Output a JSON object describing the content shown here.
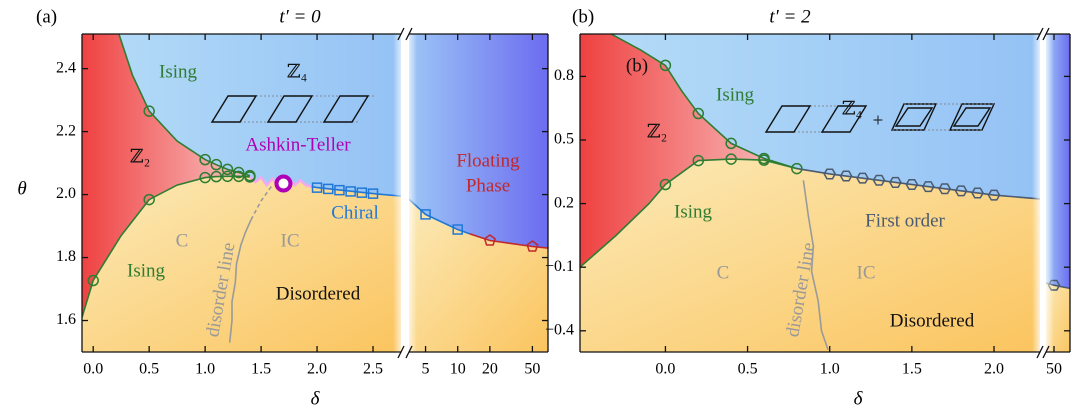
{
  "chart_data": [
    {
      "type": "phase",
      "panel_label": "(a)",
      "title": "t′ = 0",
      "xlabel": "δ",
      "ylabel": "θ",
      "xlim": [
        -0.1,
        2.75
      ],
      "x2lim": [
        3.5,
        70
      ],
      "x2scale": "log",
      "ylim": [
        1.5,
        2.51
      ],
      "xticks": [
        {
          "value": 0,
          "label": "0.0"
        },
        0.5,
        {
          "value": 1,
          "label": "1.0"
        },
        1.5,
        {
          "value": 2,
          "label": "2.0"
        },
        2.5
      ],
      "x2ticks": [
        5,
        10,
        20,
        50
      ],
      "yticks": [
        1.6,
        1.8,
        {
          "value": 2,
          "label": "2.0"
        },
        2.2,
        2.4
      ],
      "lines": [
        {
          "color": "#2e7d32",
          "x": [
            0.23,
            0.35,
            0.5,
            0.75,
            1.0,
            1.1,
            1.2,
            1.3,
            1.4
          ],
          "y": [
            2.51,
            2.38,
            2.265,
            2.17,
            2.111,
            2.095,
            2.08,
            2.07,
            2.06
          ]
        },
        {
          "color": "#2e7d32",
          "x": [
            -0.1,
            0,
            0.25,
            0.5,
            0.75,
            1.0,
            1.1,
            1.2,
            1.3,
            1.4
          ],
          "y": [
            1.61,
            1.727,
            1.87,
            1.984,
            2.03,
            2.054,
            2.057,
            2.058,
            2.058,
            2.056
          ]
        },
        {
          "color": "#f4a8f0",
          "x": [
            1.4,
            1.45,
            1.5,
            1.55,
            1.6,
            1.65,
            1.7,
            1.75,
            1.8,
            1.85,
            1.9,
            1.95
          ],
          "y": [
            2.056,
            2.04,
            2.055,
            2.03,
            2.05,
            2.03,
            2.035,
            2.05,
            2.03,
            2.045,
            2.03,
            2.025
          ]
        },
        {
          "color": "#1f78d8",
          "x": [
            1.95,
            2.0,
            2.5,
            2.75
          ],
          "y": [
            2.025,
            2.022,
            2.003,
            1.995
          ]
        },
        {
          "color": "#1f78d8",
          "axis": "x2",
          "x": [
            3.5,
            5,
            10,
            13
          ],
          "y": [
            1.985,
            1.937,
            1.889,
            1.875
          ]
        },
        {
          "color": "#c0282d",
          "axis": "x2",
          "x": [
            13,
            20,
            50,
            70
          ],
          "y": [
            1.875,
            1.854,
            1.835,
            1.83
          ]
        },
        {
          "color": "#9a9a9a",
          "x": [
            1.22,
            1.24,
            1.24,
            1.27,
            1.28,
            1.32,
            1.36,
            1.41
          ],
          "y": [
            1.53,
            1.6,
            1.66,
            1.72,
            1.78,
            1.84,
            1.88,
            1.92
          ]
        },
        {
          "color": "#9a9a9a",
          "dash": true,
          "x": [
            1.41,
            1.5,
            1.6
          ],
          "y": [
            1.92,
            1.98,
            2.03
          ]
        }
      ],
      "points": [
        {
          "marker": "circle",
          "color": "#2e7d32",
          "x": [
            0.5,
            1.0,
            1.1,
            1.2,
            1.3,
            1.4
          ],
          "y": [
            2.265,
            2.111,
            2.095,
            2.08,
            2.07,
            2.06
          ]
        },
        {
          "marker": "circle",
          "color": "#2e7d32",
          "x": [
            0,
            0.5,
            1.0,
            1.1,
            1.2,
            1.3,
            1.4
          ],
          "y": [
            1.727,
            1.984,
            2.054,
            2.057,
            2.058,
            2.058,
            2.056
          ]
        },
        {
          "marker": "ring",
          "color": "#b000b5",
          "x": [
            1.7
          ],
          "y": [
            2.035
          ]
        },
        {
          "marker": "square",
          "color": "#1f78d8",
          "x": [
            2.0,
            2.1,
            2.2,
            2.3,
            2.4,
            2.5
          ],
          "y": [
            2.022,
            2.018,
            2.014,
            2.01,
            2.006,
            2.003
          ]
        },
        {
          "marker": "square",
          "color": "#1f78d8",
          "axis": "x2",
          "x": [
            5,
            10
          ],
          "y": [
            1.937,
            1.889
          ]
        },
        {
          "marker": "pentagon",
          "color": "#c0282d",
          "axis": "x2",
          "x": [
            20,
            50
          ],
          "y": [
            1.854,
            1.835
          ]
        }
      ],
      "labels": [
        {
          "text": "Ising",
          "color": "#2e7d32"
        },
        {
          "text": "ℤ₄",
          "color": "#111"
        },
        {
          "text": "ℤ₂",
          "color": "#111"
        },
        {
          "text": "Ashkin-Teller",
          "color": "#b000b5"
        },
        {
          "text": "Floating",
          "color": "#c0282d"
        },
        {
          "text": "Phase",
          "color": "#c0282d"
        },
        {
          "text": "C",
          "color": "#999"
        },
        {
          "text": "IC",
          "color": "#999"
        },
        {
          "text": "Chiral",
          "color": "#1f78d8"
        },
        {
          "text": "Ising",
          "color": "#2e7d32"
        },
        {
          "text": "Disordered",
          "color": "#111"
        },
        {
          "text": "disorder line",
          "color": "#999"
        }
      ]
    },
    {
      "type": "phase",
      "panel_label": "(b)",
      "title": "t′ = 2",
      "xlabel": "δ",
      "xlim": [
        -0.52,
        2.28
      ],
      "x2lim": [
        46,
        58
      ],
      "x2scale": "linear",
      "ylim": [
        -0.5,
        1.0
      ],
      "xticks": [
        {
          "value": 0,
          "label": "0.0"
        },
        0.5,
        {
          "value": 1,
          "label": "1.0"
        },
        1.5,
        {
          "value": 2,
          "label": "2.0"
        }
      ],
      "x2ticks": [
        50
      ],
      "yticks": [
        {
          "value": -0.4,
          "label": "−0.4"
        },
        {
          "value": -0.1,
          "label": "−0.1"
        },
        0.2,
        0.5,
        0.8
      ],
      "lines": [
        {
          "color": "#2e7d32",
          "x": [
            -0.33,
            -0.15,
            0,
            0.1,
            0.2,
            0.4,
            0.6,
            0.8
          ],
          "y": [
            1.0,
            0.924,
            0.852,
            0.73,
            0.625,
            0.484,
            0.413,
            0.365
          ]
        },
        {
          "color": "#2e7d32",
          "x": [
            -0.52,
            -0.3,
            -0.1,
            0,
            0.2,
            0.4,
            0.6,
            0.8
          ],
          "y": [
            -0.1,
            0.05,
            0.2,
            0.29,
            0.403,
            0.41,
            0.405,
            0.365
          ]
        },
        {
          "color": "#4a5a70",
          "x": [
            0.8,
            1.0,
            2.0,
            2.28
          ],
          "y": [
            0.365,
            0.34,
            0.24,
            0.222
          ]
        },
        {
          "color": "#4a5a70",
          "axis": "x2",
          "x": [
            46,
            50,
            58
          ],
          "y": [
            -0.175,
            -0.185,
            -0.2
          ]
        },
        {
          "color": "#9a9a9a",
          "x": [
            0.99,
            0.95,
            0.93,
            0.89,
            0.9,
            0.87,
            0.84
          ],
          "y": [
            -0.49,
            -0.4,
            -0.26,
            -0.12,
            0,
            0.14,
            0.31
          ]
        }
      ],
      "points": [
        {
          "marker": "circle",
          "color": "#2e7d32",
          "x": [
            0,
            0.2,
            0.4,
            0.6,
            0.8
          ],
          "y": [
            0.852,
            0.625,
            0.484,
            0.413,
            0.365
          ]
        },
        {
          "marker": "circle",
          "color": "#2e7d32",
          "x": [
            0,
            0.2,
            0.4,
            0.6
          ],
          "y": [
            0.29,
            0.403,
            0.41,
            0.405
          ]
        },
        {
          "marker": "hexagon",
          "color": "#4a5a70",
          "x": [
            1.0,
            1.1,
            1.2,
            1.3,
            1.4,
            1.5,
            1.6,
            1.7,
            1.8,
            1.9,
            2.0
          ],
          "y": [
            0.34,
            0.33,
            0.32,
            0.31,
            0.3,
            0.29,
            0.28,
            0.27,
            0.26,
            0.25,
            0.24
          ]
        },
        {
          "marker": "hexagon",
          "color": "#4a5a70",
          "axis": "x2",
          "x": [
            50
          ],
          "y": [
            -0.185
          ]
        }
      ],
      "labels": [
        {
          "text": "(b)",
          "color": "#111"
        },
        {
          "text": "Ising",
          "color": "#2e7d32"
        },
        {
          "text": "ℤ₄",
          "color": "#111"
        },
        {
          "text": "ℤ₂",
          "color": "#111"
        },
        {
          "text": "+",
          "color": "#111"
        },
        {
          "text": "Ising",
          "color": "#2e7d32"
        },
        {
          "text": "First order",
          "color": "#4a5a70"
        },
        {
          "text": "C",
          "color": "#999"
        },
        {
          "text": "IC",
          "color": "#999"
        },
        {
          "text": "Disordered",
          "color": "#111"
        },
        {
          "text": "disorder line",
          "color": "#999"
        }
      ]
    }
  ]
}
